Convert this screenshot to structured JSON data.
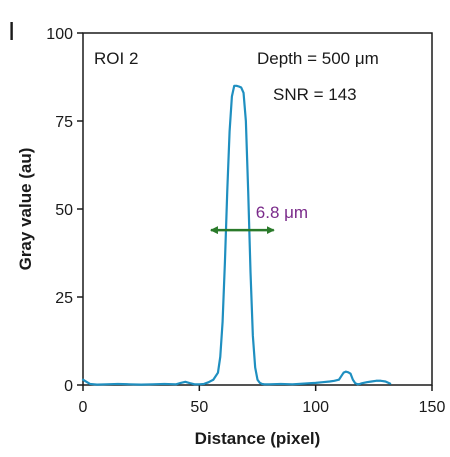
{
  "chart_data": {
    "type": "line",
    "panel_label": "I",
    "xlabel": "Distance (pixel)",
    "ylabel": "Gray value (au)",
    "xlim": [
      0,
      150
    ],
    "ylim": [
      0,
      100
    ],
    "xticks": [
      0,
      50,
      100,
      150
    ],
    "yticks": [
      0,
      25,
      50,
      75,
      100
    ],
    "grid": false,
    "series": [
      {
        "color": "#1f8fc0",
        "x": [
          0,
          3,
          6,
          10,
          15,
          20,
          25,
          30,
          35,
          40,
          42,
          44,
          46,
          48,
          50,
          52,
          54,
          56,
          58,
          59,
          60,
          61,
          62,
          63,
          64,
          65,
          66,
          67,
          68,
          69,
          70,
          71,
          72,
          73,
          74,
          75,
          76,
          77,
          78,
          80,
          85,
          90,
          95,
          100,
          103,
          106,
          108,
          110,
          111,
          112,
          113,
          114,
          115,
          116,
          117,
          118,
          119,
          120,
          122,
          124,
          126,
          128,
          130,
          132
        ],
        "y": [
          1.5,
          0.3,
          0.1,
          0.2,
          0.3,
          0.2,
          0.1,
          0.2,
          0.3,
          0.2,
          0.6,
          0.9,
          0.5,
          0.2,
          0.2,
          0.3,
          0.8,
          1.5,
          3.5,
          8,
          18,
          35,
          55,
          72,
          82,
          85,
          85,
          84.8,
          84.5,
          83,
          75,
          55,
          32,
          14,
          5,
          1.5,
          0.6,
          0.3,
          0.2,
          0.2,
          0.3,
          0.2,
          0.4,
          0.6,
          0.8,
          1.0,
          1.2,
          1.5,
          2.5,
          3.5,
          3.8,
          3.6,
          3.2,
          1.5,
          0.5,
          0.2,
          0.3,
          0.5,
          0.8,
          1.0,
          1.2,
          1.2,
          1.0,
          0.4
        ]
      }
    ],
    "annotations": {
      "roi": "ROI 2",
      "depth": "Depth = 500 μm",
      "snr": "SNR = 143",
      "fwhm_label": "6.8 μm",
      "fwhm_label_color": "#7a2a8a",
      "fwhm_arrow_color": "#2a7a2a",
      "fwhm_y": 44,
      "fwhm_x_start": 55,
      "fwhm_x_end": 82
    }
  }
}
